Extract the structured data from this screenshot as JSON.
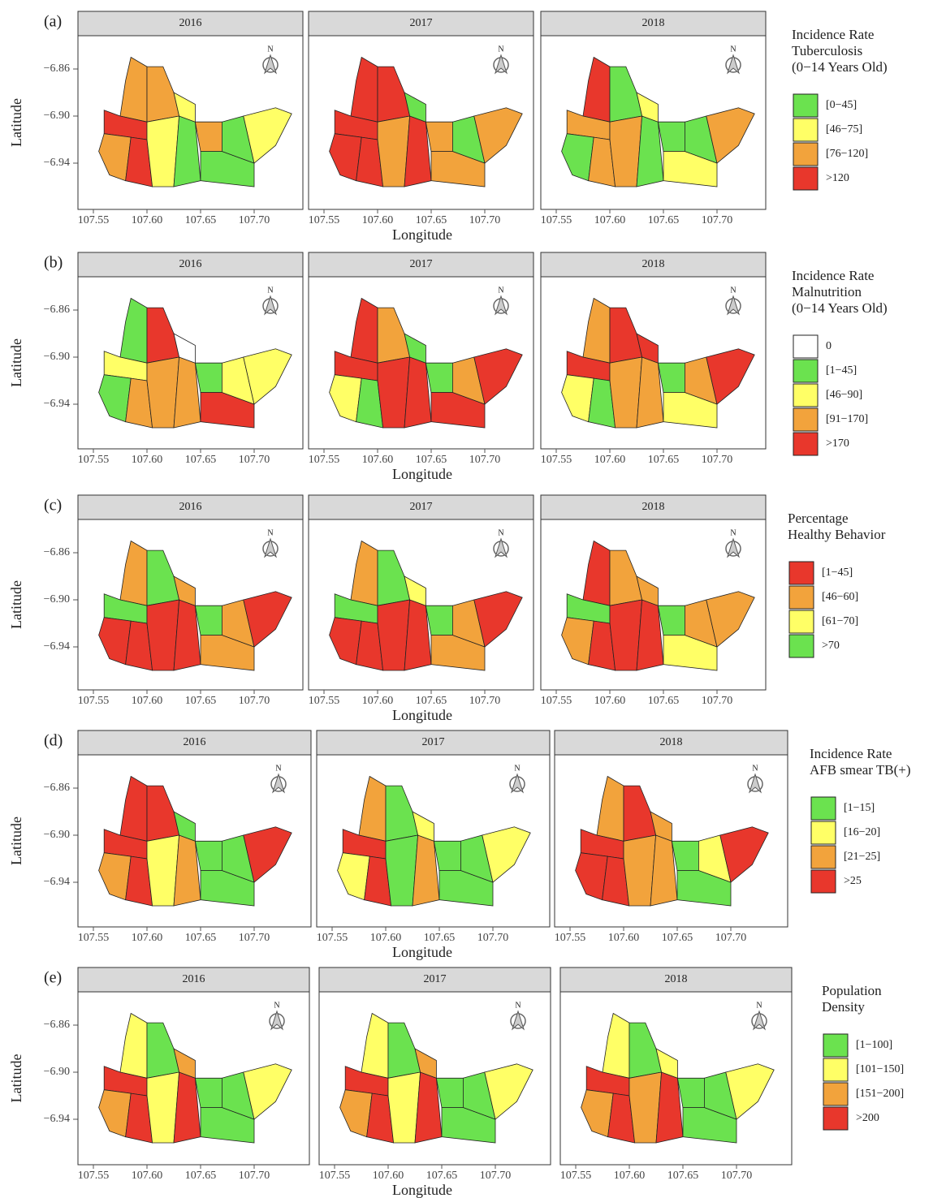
{
  "axes": {
    "y_label": "Latitude",
    "x_label": "Longitude",
    "y_ticks": [
      "−6.86",
      "−6.90",
      "−6.94"
    ],
    "x_ticks": [
      "107.55",
      "107.60",
      "107.65",
      "107.70"
    ],
    "north": "N"
  },
  "rows": [
    {
      "label": "(a)",
      "legend": {
        "title": [
          "Incidence Rate",
          "Tuberculosis",
          "(0−14 Years Old)"
        ],
        "items": [
          {
            "label": "[0−45]",
            "color": "#6be24f"
          },
          {
            "label": "[46−75]",
            "color": "#ffff66"
          },
          {
            "label": "[76−120]",
            "color": "#f2a33c"
          },
          {
            "label": ">120",
            "color": "#e8372c"
          }
        ]
      },
      "panels": [
        {
          "year": "2016",
          "colors": [
            "#f2a33c",
            "#f2a33c",
            "#e8372c",
            "#f2a33c",
            "#e8372c",
            "#ffff66",
            "#6be24f",
            "#f2a33c",
            "#6be24f",
            "#6be24f",
            "#ffff66",
            "#ffff66"
          ]
        },
        {
          "year": "2017",
          "colors": [
            "#e8372c",
            "#e8372c",
            "#e8372c",
            "#e8372c",
            "#e8372c",
            "#f2a33c",
            "#e8372c",
            "#f2a33c",
            "#f2a33c",
            "#6be24f",
            "#f2a33c",
            "#6be24f"
          ]
        },
        {
          "year": "2018",
          "colors": [
            "#e8372c",
            "#6be24f",
            "#f2a33c",
            "#6be24f",
            "#f2a33c",
            "#f2a33c",
            "#6be24f",
            "#6be24f",
            "#ffff66",
            "#6be24f",
            "#f2a33c",
            "#ffff66"
          ]
        }
      ]
    },
    {
      "label": "(b)",
      "legend": {
        "title": [
          "Incidence Rate",
          "Malnutrition",
          "(0−14 Years Old)"
        ],
        "items": [
          {
            "label": "0",
            "color": "#ffffff"
          },
          {
            "label": "[1−45]",
            "color": "#6be24f"
          },
          {
            "label": "[46−90]",
            "color": "#ffff66"
          },
          {
            "label": "[91−170]",
            "color": "#f2a33c"
          },
          {
            "label": ">170",
            "color": "#e8372c"
          }
        ]
      },
      "panels": [
        {
          "year": "2016",
          "colors": [
            "#6be24f",
            "#e8372c",
            "#ffff66",
            "#6be24f",
            "#f2a33c",
            "#f2a33c",
            "#f2a33c",
            "#6be24f",
            "#e8372c",
            "#ffff66",
            "#ffff66",
            "#ffffff"
          ]
        },
        {
          "year": "2017",
          "colors": [
            "#e8372c",
            "#f2a33c",
            "#e8372c",
            "#ffff66",
            "#6be24f",
            "#e8372c",
            "#e8372c",
            "#6be24f",
            "#e8372c",
            "#f2a33c",
            "#e8372c",
            "#6be24f"
          ]
        },
        {
          "year": "2018",
          "colors": [
            "#f2a33c",
            "#e8372c",
            "#e8372c",
            "#ffff66",
            "#6be24f",
            "#f2a33c",
            "#f2a33c",
            "#6be24f",
            "#ffff66",
            "#f2a33c",
            "#e8372c",
            "#e8372c"
          ]
        }
      ]
    },
    {
      "label": "(c)",
      "legend": {
        "title": [
          "Percentage",
          "Healthy Behavior"
        ],
        "items": [
          {
            "label": "[1−45]",
            "color": "#e8372c"
          },
          {
            "label": "[46−60]",
            "color": "#f2a33c"
          },
          {
            "label": "[61−70]",
            "color": "#ffff66"
          },
          {
            "label": ">70",
            "color": "#6be24f"
          }
        ]
      },
      "panels": [
        {
          "year": "2016",
          "colors": [
            "#f2a33c",
            "#6be24f",
            "#6be24f",
            "#e8372c",
            "#e8372c",
            "#e8372c",
            "#e8372c",
            "#6be24f",
            "#f2a33c",
            "#f2a33c",
            "#e8372c",
            "#f2a33c"
          ]
        },
        {
          "year": "2017",
          "colors": [
            "#f2a33c",
            "#6be24f",
            "#6be24f",
            "#e8372c",
            "#e8372c",
            "#e8372c",
            "#e8372c",
            "#6be24f",
            "#f2a33c",
            "#f2a33c",
            "#e8372c",
            "#ffff66"
          ]
        },
        {
          "year": "2018",
          "colors": [
            "#e8372c",
            "#f2a33c",
            "#6be24f",
            "#f2a33c",
            "#e8372c",
            "#e8372c",
            "#e8372c",
            "#6be24f",
            "#ffff66",
            "#f2a33c",
            "#f2a33c",
            "#f2a33c"
          ]
        }
      ]
    },
    {
      "label": "(d)",
      "legend": {
        "title": [
          "Incidence Rate",
          "AFB smear TB(+)"
        ],
        "items": [
          {
            "label": "[1−15]",
            "color": "#6be24f"
          },
          {
            "label": "[16−20]",
            "color": "#ffff66"
          },
          {
            "label": "[21−25]",
            "color": "#f2a33c"
          },
          {
            "label": ">25",
            "color": "#e8372c"
          }
        ]
      },
      "panels": [
        {
          "year": "2016",
          "colors": [
            "#e8372c",
            "#e8372c",
            "#e8372c",
            "#f2a33c",
            "#e8372c",
            "#ffff66",
            "#f2a33c",
            "#6be24f",
            "#6be24f",
            "#6be24f",
            "#e8372c",
            "#6be24f"
          ]
        },
        {
          "year": "2017",
          "colors": [
            "#f2a33c",
            "#6be24f",
            "#e8372c",
            "#ffff66",
            "#e8372c",
            "#6be24f",
            "#f2a33c",
            "#6be24f",
            "#6be24f",
            "#6be24f",
            "#ffff66",
            "#ffff66"
          ]
        },
        {
          "year": "2018",
          "colors": [
            "#f2a33c",
            "#e8372c",
            "#e8372c",
            "#e8372c",
            "#e8372c",
            "#f2a33c",
            "#f2a33c",
            "#6be24f",
            "#6be24f",
            "#ffff66",
            "#e8372c",
            "#f2a33c"
          ]
        }
      ]
    },
    {
      "label": "(e)",
      "legend": {
        "title": [
          "Population",
          "Density"
        ],
        "items": [
          {
            "label": "[1−100]",
            "color": "#6be24f"
          },
          {
            "label": "[101−150]",
            "color": "#ffff66"
          },
          {
            "label": "[151−200]",
            "color": "#f2a33c"
          },
          {
            "label": ">200",
            "color": "#e8372c"
          }
        ]
      },
      "panels": [
        {
          "year": "2016",
          "colors": [
            "#ffff66",
            "#6be24f",
            "#e8372c",
            "#f2a33c",
            "#e8372c",
            "#ffff66",
            "#e8372c",
            "#6be24f",
            "#6be24f",
            "#6be24f",
            "#ffff66",
            "#f2a33c"
          ]
        },
        {
          "year": "2017",
          "colors": [
            "#ffff66",
            "#6be24f",
            "#e8372c",
            "#f2a33c",
            "#e8372c",
            "#ffff66",
            "#e8372c",
            "#6be24f",
            "#6be24f",
            "#6be24f",
            "#ffff66",
            "#f2a33c"
          ]
        },
        {
          "year": "2018",
          "colors": [
            "#ffff66",
            "#6be24f",
            "#e8372c",
            "#f2a33c",
            "#e8372c",
            "#f2a33c",
            "#e8372c",
            "#6be24f",
            "#6be24f",
            "#6be24f",
            "#ffff66",
            "#ffff66"
          ]
        }
      ]
    }
  ]
}
